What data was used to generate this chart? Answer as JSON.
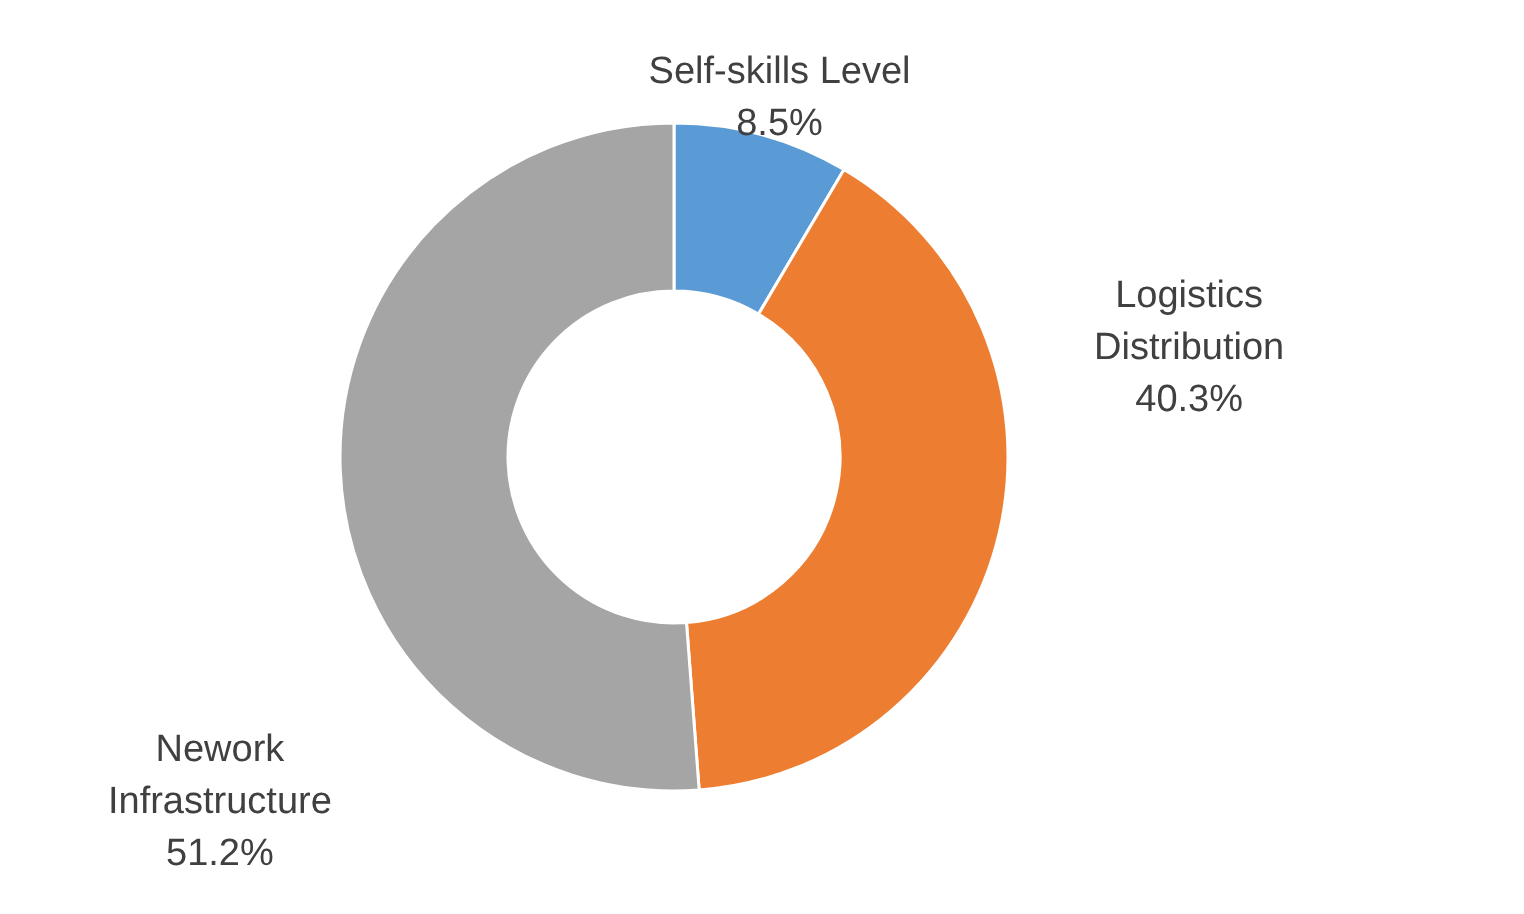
{
  "chart_data": {
    "type": "donut",
    "categories": [
      "Self-skills Level",
      "Logistics Distribution",
      "Nework Infrastructure"
    ],
    "values": [
      8.5,
      40.3,
      51.2
    ],
    "colors": [
      "#5b9bd5",
      "#ed7d31",
      "#a5a5a5"
    ],
    "value_labels": [
      "8.5%",
      "40.3%",
      "51.2%"
    ]
  }
}
